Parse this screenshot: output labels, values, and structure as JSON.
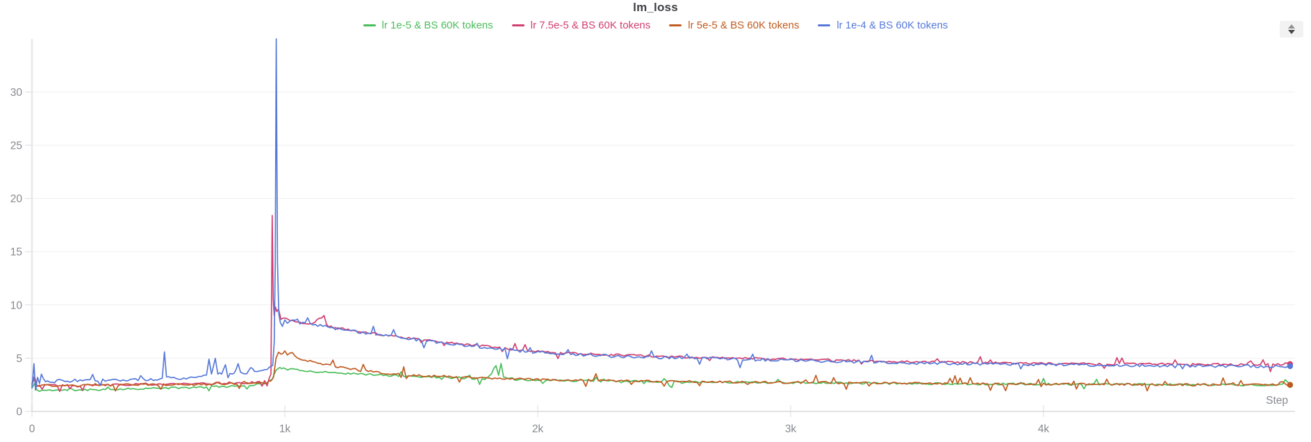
{
  "header": {
    "title": "lm_loss"
  },
  "icons": {
    "panel_handle": "up-down-triangles"
  },
  "legend": {
    "position": "top",
    "items": [
      {
        "label": "lr 1e-5 & BS 60K tokens",
        "color": "#49bd59"
      },
      {
        "label": "lr 7.5e-5 & BS 60K tokens",
        "color": "#d23e6e"
      },
      {
        "label": "lr 5e-5 & BS 60K tokens",
        "color": "#c05a1f"
      },
      {
        "label": "lr 1e-4 & BS 60K tokens",
        "color": "#5679d9"
      }
    ]
  },
  "chart_data": {
    "type": "line",
    "title": "lm_loss",
    "xlabel": "Step",
    "ylabel": "",
    "x_range": [
      0,
      5000
    ],
    "y_range": [
      0,
      35
    ],
    "grid": true,
    "legend_position": "top",
    "x_ticks": [
      {
        "value": 0,
        "label": "0"
      },
      {
        "value": 1000,
        "label": "1k"
      },
      {
        "value": 2000,
        "label": "2k"
      },
      {
        "value": 3000,
        "label": "3k"
      },
      {
        "value": 4000,
        "label": "4k"
      }
    ],
    "y_ticks": [
      {
        "value": 0,
        "label": "0"
      },
      {
        "value": 5,
        "label": "5"
      },
      {
        "value": 10,
        "label": "10"
      },
      {
        "value": 15,
        "label": "15"
      },
      {
        "value": 20,
        "label": "20"
      },
      {
        "value": 25,
        "label": "25"
      },
      {
        "value": 30,
        "label": "30"
      }
    ],
    "notes": "noisy training curves; anchors give readable trend/spike values, noise spec reproduces jitter band",
    "series": [
      {
        "key": "lr1e5",
        "name": "lr 1e-5 & BS 60K tokens",
        "color": "#49bd59",
        "seed": 11,
        "noise": {
          "amp": 0.09,
          "spike_amp": 0.5,
          "spike_prob": 0.07
        },
        "end_dot": true,
        "anchors": [
          [
            0,
            2.2
          ],
          [
            10,
            2.6
          ],
          [
            20,
            1.95
          ],
          [
            60,
            2.0
          ],
          [
            150,
            2.0
          ],
          [
            250,
            2.05
          ],
          [
            350,
            2.1
          ],
          [
            450,
            2.15
          ],
          [
            550,
            2.2
          ],
          [
            650,
            2.25
          ],
          [
            750,
            2.35
          ],
          [
            850,
            2.45
          ],
          [
            900,
            2.55
          ],
          [
            930,
            2.7
          ],
          [
            950,
            3.0
          ],
          [
            965,
            3.9
          ],
          [
            980,
            4.2
          ],
          [
            995,
            4.0
          ],
          [
            1020,
            3.95
          ],
          [
            1060,
            3.85
          ],
          [
            1100,
            3.8
          ],
          [
            1150,
            3.7
          ],
          [
            1200,
            3.65
          ],
          [
            1300,
            3.5
          ],
          [
            1400,
            3.4
          ],
          [
            1500,
            3.3
          ],
          [
            1600,
            3.22
          ],
          [
            1700,
            3.15
          ],
          [
            1800,
            3.08
          ],
          [
            1835,
            4.3
          ],
          [
            1845,
            3.4
          ],
          [
            1855,
            4.5
          ],
          [
            1865,
            3.2
          ],
          [
            1900,
            3.0
          ],
          [
            2000,
            2.95
          ],
          [
            2200,
            2.88
          ],
          [
            2400,
            2.82
          ],
          [
            2600,
            2.78
          ],
          [
            2800,
            2.74
          ],
          [
            3000,
            2.7
          ],
          [
            3300,
            2.65
          ],
          [
            3600,
            2.6
          ],
          [
            3900,
            2.57
          ],
          [
            4200,
            2.54
          ],
          [
            4500,
            2.52
          ],
          [
            4800,
            2.5
          ],
          [
            4975,
            2.48
          ]
        ]
      },
      {
        "key": "lr75e5",
        "name": "lr 7.5e-5 & BS 60K tokens",
        "color": "#d23e6e",
        "seed": 22,
        "noise": {
          "amp": 0.1,
          "spike_amp": 0.65,
          "spike_prob": 0.07
        },
        "end_dot": true,
        "anchors": [
          [
            0,
            2.6
          ],
          [
            10,
            3.3
          ],
          [
            20,
            2.4
          ],
          [
            40,
            2.55
          ],
          [
            80,
            2.5
          ],
          [
            150,
            2.45
          ],
          [
            250,
            2.5
          ],
          [
            350,
            2.5
          ],
          [
            450,
            2.55
          ],
          [
            550,
            2.6
          ],
          [
            650,
            2.6
          ],
          [
            750,
            2.65
          ],
          [
            850,
            2.7
          ],
          [
            900,
            2.75
          ],
          [
            930,
            2.85
          ],
          [
            945,
            3.5
          ],
          [
            950,
            18.4
          ],
          [
            954,
            10.5
          ],
          [
            958,
            9.0
          ],
          [
            963,
            9.8
          ],
          [
            968,
            9.3
          ],
          [
            975,
            9.6
          ],
          [
            985,
            8.6
          ],
          [
            1000,
            8.8
          ],
          [
            1020,
            8.5
          ],
          [
            1060,
            8.35
          ],
          [
            1100,
            8.2
          ],
          [
            1155,
            9.0
          ],
          [
            1165,
            8.1
          ],
          [
            1200,
            7.85
          ],
          [
            1300,
            7.5
          ],
          [
            1400,
            7.15
          ],
          [
            1500,
            6.85
          ],
          [
            1600,
            6.55
          ],
          [
            1700,
            6.3
          ],
          [
            1800,
            6.1
          ],
          [
            1900,
            5.85
          ],
          [
            2000,
            5.65
          ],
          [
            2100,
            5.5
          ],
          [
            2200,
            5.4
          ],
          [
            2300,
            5.3
          ],
          [
            2400,
            5.25
          ],
          [
            2500,
            5.15
          ],
          [
            2600,
            5.1
          ],
          [
            2700,
            5.05
          ],
          [
            2800,
            5.0
          ],
          [
            2900,
            4.95
          ],
          [
            3000,
            4.9
          ],
          [
            3200,
            4.8
          ],
          [
            3400,
            4.7
          ],
          [
            3600,
            4.62
          ],
          [
            3800,
            4.55
          ],
          [
            4000,
            4.5
          ],
          [
            4200,
            4.48
          ],
          [
            4400,
            4.45
          ],
          [
            4600,
            4.42
          ],
          [
            4800,
            4.4
          ],
          [
            4975,
            4.45
          ]
        ]
      },
      {
        "key": "lr5e5",
        "name": "lr 5e-5 & BS 60K tokens",
        "color": "#c05a1f",
        "seed": 33,
        "noise": {
          "amp": 0.1,
          "spike_amp": 0.7,
          "spike_prob": 0.08
        },
        "end_dot": true,
        "anchors": [
          [
            0,
            2.5
          ],
          [
            10,
            3.1
          ],
          [
            20,
            2.3
          ],
          [
            50,
            2.45
          ],
          [
            120,
            2.4
          ],
          [
            250,
            2.45
          ],
          [
            400,
            2.5
          ],
          [
            550,
            2.5
          ],
          [
            700,
            2.55
          ],
          [
            800,
            2.6
          ],
          [
            880,
            2.65
          ],
          [
            920,
            2.7
          ],
          [
            945,
            2.8
          ],
          [
            955,
            3.2
          ],
          [
            965,
            5.0
          ],
          [
            975,
            5.6
          ],
          [
            985,
            5.3
          ],
          [
            1000,
            5.7
          ],
          [
            1010,
            5.3
          ],
          [
            1030,
            5.5
          ],
          [
            1050,
            5.0
          ],
          [
            1080,
            4.8
          ],
          [
            1120,
            4.6
          ],
          [
            1160,
            4.4
          ],
          [
            1200,
            4.25
          ],
          [
            1260,
            4.0
          ],
          [
            1320,
            3.8
          ],
          [
            1400,
            3.55
          ],
          [
            1500,
            3.4
          ],
          [
            1600,
            3.3
          ],
          [
            1700,
            3.2
          ],
          [
            1800,
            3.12
          ],
          [
            1900,
            3.05
          ],
          [
            2000,
            3.0
          ],
          [
            2200,
            2.92
          ],
          [
            2400,
            2.85
          ],
          [
            2600,
            2.8
          ],
          [
            2800,
            2.75
          ],
          [
            3000,
            2.72
          ],
          [
            3300,
            2.68
          ],
          [
            3600,
            2.62
          ],
          [
            3900,
            2.58
          ],
          [
            4200,
            2.55
          ],
          [
            4500,
            2.52
          ],
          [
            4800,
            2.5
          ],
          [
            4975,
            2.5
          ]
        ]
      },
      {
        "key": "lr1e4",
        "name": "lr 1e-4 & BS 60K tokens",
        "color": "#5679d9",
        "seed": 44,
        "noise": {
          "amp": 0.13,
          "spike_amp": 0.8,
          "spike_prob": 0.06
        },
        "end_dot": true,
        "anchors": [
          [
            0,
            2.2
          ],
          [
            8,
            4.5
          ],
          [
            14,
            2.0
          ],
          [
            22,
            3.2
          ],
          [
            30,
            2.6
          ],
          [
            45,
            3.0
          ],
          [
            70,
            2.75
          ],
          [
            120,
            2.9
          ],
          [
            180,
            2.85
          ],
          [
            240,
            2.95
          ],
          [
            300,
            2.9
          ],
          [
            360,
            2.95
          ],
          [
            420,
            3.0
          ],
          [
            480,
            3.0
          ],
          [
            515,
            3.1
          ],
          [
            524,
            5.6
          ],
          [
            532,
            3.2
          ],
          [
            570,
            3.1
          ],
          [
            610,
            3.15
          ],
          [
            650,
            3.2
          ],
          [
            690,
            3.4
          ],
          [
            700,
            4.9
          ],
          [
            710,
            3.5
          ],
          [
            725,
            5.0
          ],
          [
            735,
            3.6
          ],
          [
            750,
            3.5
          ],
          [
            765,
            4.4
          ],
          [
            775,
            3.5
          ],
          [
            800,
            3.6
          ],
          [
            815,
            4.5
          ],
          [
            825,
            3.6
          ],
          [
            850,
            3.6
          ],
          [
            865,
            4.2
          ],
          [
            880,
            3.7
          ],
          [
            900,
            3.8
          ],
          [
            920,
            3.9
          ],
          [
            940,
            4.1
          ],
          [
            952,
            4.3
          ],
          [
            958,
            6.5
          ],
          [
            962,
            14
          ],
          [
            966,
            35
          ],
          [
            971,
            14
          ],
          [
            976,
            9.2
          ],
          [
            982,
            8.3
          ],
          [
            990,
            8.0
          ],
          [
            1000,
            8.6
          ],
          [
            1010,
            8.3
          ],
          [
            1030,
            8.5
          ],
          [
            1060,
            8.3
          ],
          [
            1100,
            8.15
          ],
          [
            1150,
            8.0
          ],
          [
            1200,
            7.8
          ],
          [
            1300,
            7.45
          ],
          [
            1400,
            7.1
          ],
          [
            1500,
            6.8
          ],
          [
            1600,
            6.5
          ],
          [
            1700,
            6.2
          ],
          [
            1800,
            6.0
          ],
          [
            1900,
            5.75
          ],
          [
            2000,
            5.55
          ],
          [
            2100,
            5.4
          ],
          [
            2200,
            5.3
          ],
          [
            2300,
            5.2
          ],
          [
            2400,
            5.1
          ],
          [
            2500,
            5.05
          ],
          [
            2600,
            5.0
          ],
          [
            2700,
            4.95
          ],
          [
            2800,
            4.9
          ],
          [
            2900,
            4.85
          ],
          [
            3000,
            4.8
          ],
          [
            3100,
            4.75
          ],
          [
            3200,
            4.7
          ],
          [
            3300,
            4.65
          ],
          [
            3400,
            4.6
          ],
          [
            3500,
            4.55
          ],
          [
            3600,
            4.5
          ],
          [
            3700,
            4.48
          ],
          [
            3800,
            4.45
          ],
          [
            3900,
            4.42
          ],
          [
            4000,
            4.4
          ],
          [
            4100,
            4.38
          ],
          [
            4200,
            4.35
          ],
          [
            4300,
            4.33
          ],
          [
            4400,
            4.3
          ],
          [
            4500,
            4.3
          ],
          [
            4600,
            4.28
          ],
          [
            4700,
            4.26
          ],
          [
            4800,
            4.25
          ],
          [
            4900,
            4.23
          ],
          [
            4975,
            4.25
          ]
        ]
      }
    ]
  },
  "colors": {
    "axis_text": "#85888f",
    "grid_line": "#efeff1",
    "axis_line": "#d6d8db",
    "y_axis_line": "#e7e8ea",
    "tick_line": "#dcdde0",
    "title_text": "#3c3f44"
  }
}
